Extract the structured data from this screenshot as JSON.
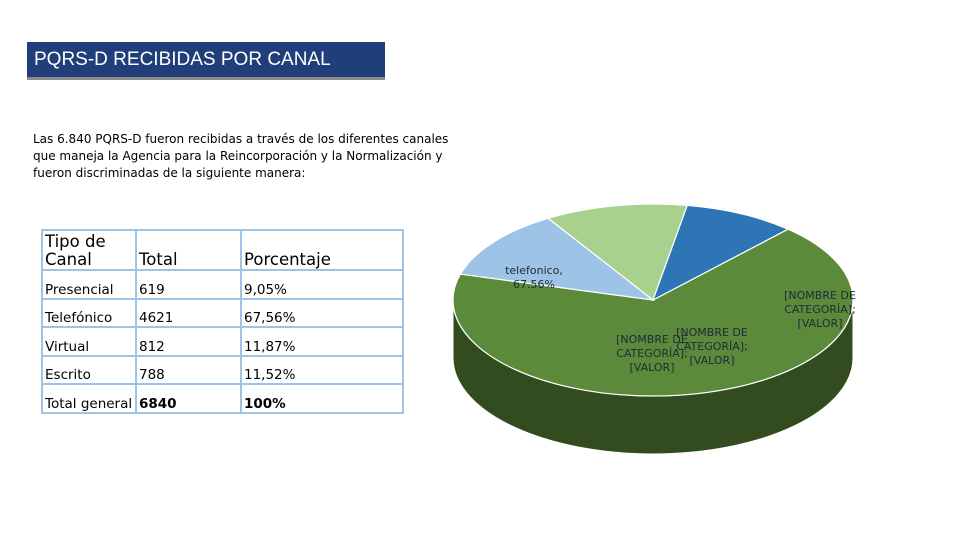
{
  "header": {
    "title": "PQRS-D RECIBIDAS POR CANAL"
  },
  "intro": "Las  6.840 PQRS-D fueron recibidas a través de los diferentes canales que maneja la Agencia para la Reincorporación y la Normalización y fueron discriminadas de la siguiente manera:",
  "table": {
    "headers": [
      "Tipo de Canal",
      "Total",
      "Porcentaje"
    ],
    "rows": [
      [
        "Presencial",
        "619",
        "9,05%"
      ],
      [
        "Telefónico",
        "4621",
        "67,56%"
      ],
      [
        "Virtual",
        "812",
        "11,87%"
      ],
      [
        "Escrito",
        "788",
        "11,52%"
      ],
      [
        "Total general",
        "6840",
        "100%"
      ]
    ]
  },
  "chart_data": {
    "type": "pie",
    "title": "",
    "slices": [
      {
        "label": "telefonico, 67.56%",
        "value": 67.56,
        "color": "#5b8a3a"
      },
      {
        "label": "[NOMBRE DE CATEGORÍA]; [VALOR]",
        "value": 11.87,
        "color": "#9dc3e6"
      },
      {
        "label": "[NOMBRE DE CATEGORÍA]; [VALOR]",
        "value": 11.52,
        "color": "#a9d18e"
      },
      {
        "label": "[NOMBRE DE CATEGORÍA]; [VALOR]",
        "value": 9.05,
        "color": "#2e75b6"
      }
    ]
  }
}
